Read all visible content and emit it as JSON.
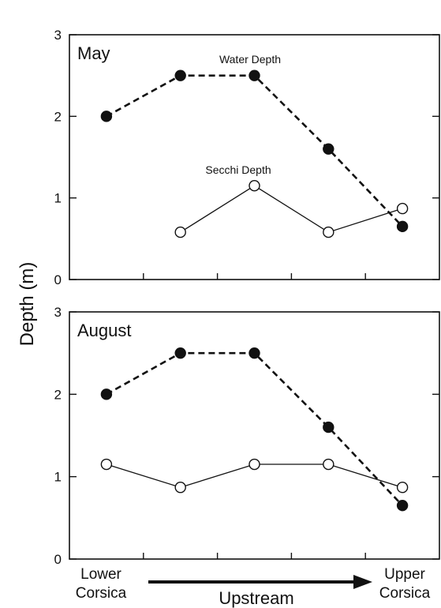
{
  "figure": {
    "ylabel": "Depth (m)",
    "x_left_label": [
      "Lower",
      "Corsica"
    ],
    "x_right_label": [
      "Upper",
      "Corsica"
    ],
    "arrow_label": "Upstream"
  },
  "chart_data": [
    {
      "type": "line",
      "panel_title": "May",
      "xlabel": "",
      "ylabel": "Depth (m)",
      "ylim": [
        0,
        3
      ],
      "yticks": [
        0,
        1,
        2,
        3
      ],
      "xlim": [
        0,
        5
      ],
      "x_minor_ticks": [
        1,
        2,
        3,
        4
      ],
      "series": [
        {
          "name": "Water Depth",
          "style": "dashed",
          "marker": "filled-circle",
          "x": [
            0.5,
            1.5,
            2.5,
            3.5,
            4.5
          ],
          "values": [
            2.0,
            2.5,
            2.5,
            1.6,
            0.65
          ]
        },
        {
          "name": "Secchi Depth",
          "style": "solid",
          "marker": "open-circle",
          "x": [
            1.5,
            2.5,
            3.5,
            4.5
          ],
          "values": [
            0.58,
            1.15,
            0.58,
            0.87
          ]
        }
      ],
      "annotations": [
        "Water Depth",
        "Secchi Depth"
      ]
    },
    {
      "type": "line",
      "panel_title": "August",
      "xlabel": "",
      "ylabel": "Depth (m)",
      "ylim": [
        0,
        3
      ],
      "yticks": [
        0,
        1,
        2,
        3
      ],
      "xlim": [
        0,
        5
      ],
      "x_minor_ticks": [
        1,
        2,
        3,
        4
      ],
      "series": [
        {
          "style": "dashed",
          "marker": "filled-circle",
          "x": [
            0.5,
            1.5,
            2.5,
            3.5,
            4.5
          ],
          "values": [
            2.0,
            2.5,
            2.5,
            1.6,
            0.65
          ]
        },
        {
          "style": "solid",
          "marker": "open-circle",
          "x": [
            0.5,
            1.5,
            2.5,
            3.5,
            4.5
          ],
          "values": [
            1.15,
            0.87,
            1.15,
            1.15,
            0.87
          ]
        }
      ],
      "annotations": []
    }
  ]
}
